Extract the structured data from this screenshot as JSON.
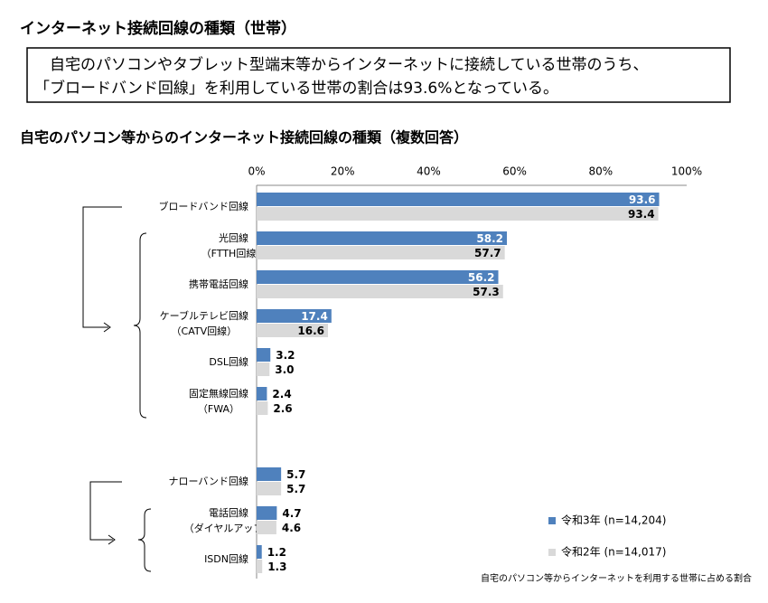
{
  "header": {
    "title": "インターネット接続回線の種類（世帯）",
    "summary": [
      "　自宅のパソコンやタブレット型端末等からインターネットに接続している世帯のうち、",
      "「ブロードバンド回線」を利用している世帯の割合は93.6%となっている。"
    ]
  },
  "chart_data": {
    "type": "hbar",
    "title": "自宅のパソコン等からのインターネット接続回線の種類（複数回答）",
    "note": "自宅のパソコン等からインターネットを利用する世帯に占める割合",
    "categories": [
      [
        "ブロードバンド回線"
      ],
      [
        "光回線",
        "（FTTH回線）"
      ],
      [
        "携帯電話回線"
      ],
      [
        "ケーブルテレビ回線",
        "（CATV回線）"
      ],
      [
        "DSL回線"
      ],
      [
        "固定無線回線",
        "（FWA）"
      ],
      [
        "ナローバンド回線"
      ],
      [
        "電話回線",
        "（ダイヤルアップ）"
      ],
      [
        "ISDN回線"
      ]
    ],
    "series": [
      {
        "name": "令和3年 (n=14,204)",
        "color": "#4f81bd",
        "values": [
          93.6,
          58.2,
          56.2,
          17.4,
          3.2,
          2.4,
          5.7,
          4.7,
          1.2
        ],
        "value_labels": [
          "93.6",
          "58.2",
          "56.2",
          "17.4",
          "3.2",
          "2.4",
          "5.7",
          "4.7",
          "1.2"
        ]
      },
      {
        "name": "令和2年 (n=14,017)",
        "color": "#d9d9d9",
        "values": [
          93.4,
          57.7,
          57.3,
          16.6,
          3.0,
          2.6,
          5.7,
          4.6,
          1.3
        ],
        "value_labels": [
          "93.4",
          "57.7",
          "57.3",
          "16.6",
          "3.0",
          "2.6",
          "5.7",
          "4.6",
          "1.3"
        ]
      }
    ],
    "xlim": [
      0,
      100
    ],
    "xticks": [
      {
        "value": 0,
        "label": "0%"
      },
      {
        "value": 20,
        "label": "20%"
      },
      {
        "value": 40,
        "label": "40%"
      },
      {
        "value": 60,
        "label": "60%"
      },
      {
        "value": 80,
        "label": "80%"
      },
      {
        "value": 100,
        "label": "100%"
      }
    ],
    "legend": "lower right"
  }
}
